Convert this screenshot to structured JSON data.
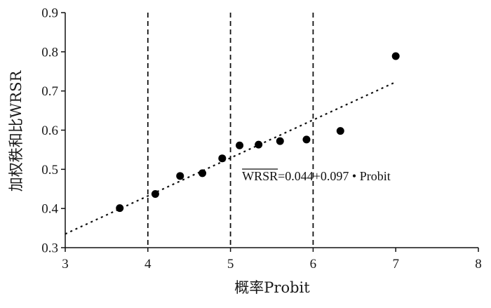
{
  "chart_data": {
    "type": "scatter",
    "xlabel": "概率Probit",
    "ylabel": "加权秩和比WRSR",
    "xlim": [
      3,
      8
    ],
    "ylim": [
      0.3,
      0.9
    ],
    "xticks": [
      "3",
      "4",
      "5",
      "6",
      "7",
      "8"
    ],
    "yticks": [
      "0.3",
      "0.4",
      "0.5",
      "0.6",
      "0.7",
      "0.8",
      "0.9"
    ],
    "grid": false,
    "points": [
      {
        "x": 3.66,
        "y": 0.401
      },
      {
        "x": 4.09,
        "y": 0.437
      },
      {
        "x": 4.39,
        "y": 0.483
      },
      {
        "x": 4.66,
        "y": 0.49
      },
      {
        "x": 4.9,
        "y": 0.528
      },
      {
        "x": 5.11,
        "y": 0.561
      },
      {
        "x": 5.34,
        "y": 0.563
      },
      {
        "x": 5.6,
        "y": 0.572
      },
      {
        "x": 5.92,
        "y": 0.576
      },
      {
        "x": 6.33,
        "y": 0.598
      },
      {
        "x": 7.0,
        "y": 0.789
      }
    ],
    "fit_line": {
      "intercept": 0.044,
      "slope": 0.097,
      "x_range": [
        3,
        7
      ],
      "style": "dotted"
    },
    "vertical_lines": [
      4,
      5,
      6
    ],
    "vertical_line_style": "dashed",
    "annotation": {
      "overline_text": "WRSR",
      "text": "=0.044+0.097 • Probit",
      "at_x": 5.14,
      "at_y": 0.472
    }
  }
}
